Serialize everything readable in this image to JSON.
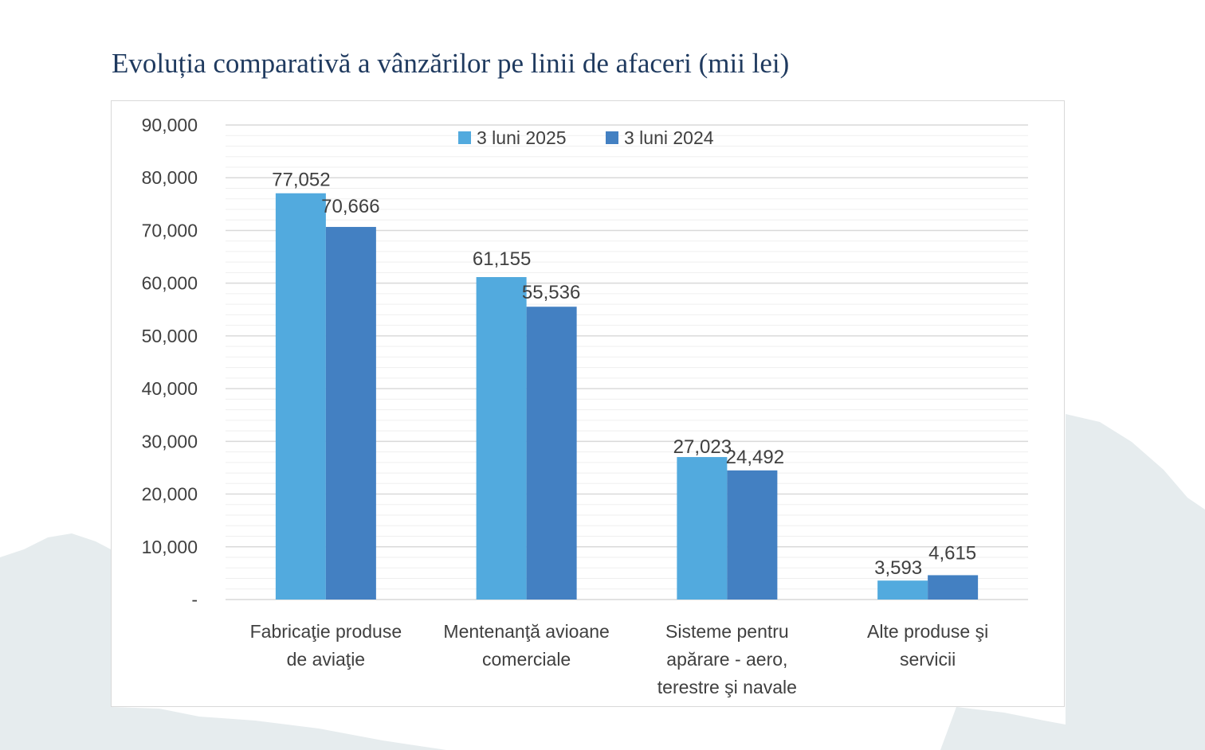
{
  "page": {
    "title": "Evoluția comparativă a vânzărilor pe linii de afaceri (mii lei)"
  },
  "colors": {
    "series_2025": "#52aade",
    "series_2024": "#4380c2",
    "title": "#1f3a5f",
    "grid": "#d9d9d9",
    "text": "#404040",
    "map": "#e6ecee"
  },
  "chart_data": {
    "type": "bar",
    "title": "Evoluția comparativă a vânzărilor pe linii de afaceri (mii lei)",
    "categories": [
      [
        "Fabricaţie produse",
        "de aviaţie"
      ],
      [
        "Mentenanţă avioane",
        "comerciale"
      ],
      [
        "Sisteme pentru",
        "apărare - aero,",
        "terestre şi navale"
      ],
      [
        "Alte produse şi",
        "servicii"
      ]
    ],
    "series": [
      {
        "name": "3 luni 2025",
        "values": [
          77052,
          61155,
          27023,
          3593
        ],
        "labels": [
          "77,052",
          "61,155",
          "27,023",
          "3,593"
        ]
      },
      {
        "name": "3 luni 2024",
        "values": [
          70666,
          55536,
          24492,
          4615
        ],
        "labels": [
          "70,666",
          "55,536",
          "24,492",
          "4,615"
        ]
      }
    ],
    "ylim": [
      0,
      90000
    ],
    "y_ticks": [
      0,
      10000,
      20000,
      30000,
      40000,
      50000,
      60000,
      70000,
      80000,
      90000
    ],
    "y_tick_labels": [
      "-",
      "10,000",
      "20,000",
      "30,000",
      "40,000",
      "50,000",
      "60,000",
      "70,000",
      "80,000",
      "90,000"
    ],
    "xlabel": "",
    "ylabel": "",
    "grid": true,
    "minor_grid": true,
    "legend_position": "top-center"
  }
}
